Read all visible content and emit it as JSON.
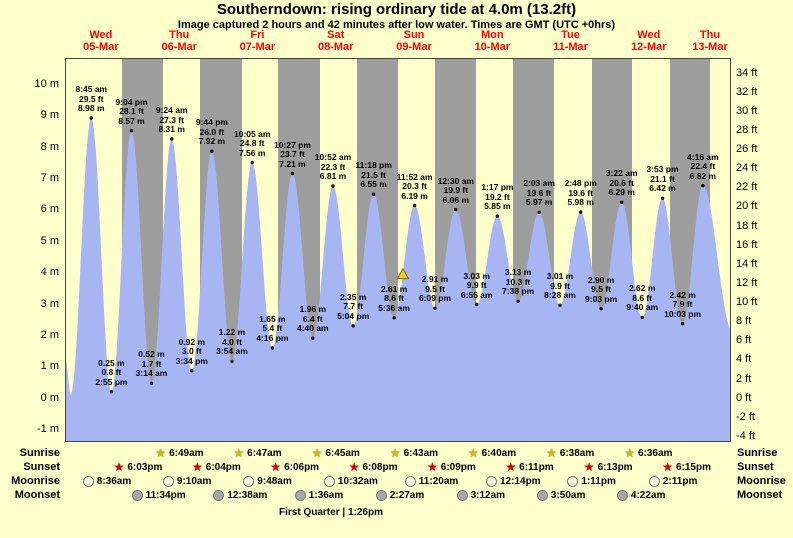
{
  "title": "Southerndown: rising ordinary tide at 4.0m (13.2ft)",
  "subtitle": "Image captured 2 hours and 42 minutes after low water. Times are GMT (UTC +0hrs)",
  "footer": "First Quarter | 1:26pm",
  "colors": {
    "background": "#ffffcc",
    "night_band": "#9e9e9e",
    "tide_fill": "#a7b6f2",
    "day_label": "#ff0000",
    "marker_fill": "#f2cf1a",
    "marker_stroke": "#7a6800",
    "sunrise_star": "#d8b60a",
    "sunset_star": "#e00000",
    "moonrise_circle": "#ffffe8",
    "moonset_circle": "#a8a8a8",
    "extreme_dot": "#111111"
  },
  "days": [
    {
      "name": "Wed",
      "date": "05-Mar"
    },
    {
      "name": "Thu",
      "date": "06-Mar"
    },
    {
      "name": "Fri",
      "date": "07-Mar"
    },
    {
      "name": "Sat",
      "date": "08-Mar"
    },
    {
      "name": "Sun",
      "date": "09-Mar"
    },
    {
      "name": "Mon",
      "date": "10-Mar"
    },
    {
      "name": "Tue",
      "date": "11-Mar"
    },
    {
      "name": "Wed",
      "date": "12-Mar"
    },
    {
      "name": "Thu",
      "date": "13-Mar"
    }
  ],
  "axes": {
    "left_unit": "m",
    "right_unit": "ft",
    "left_m": [
      10,
      9,
      8,
      7,
      6,
      5,
      4,
      3,
      2,
      1,
      0,
      -1
    ],
    "right_ft": [
      34,
      32,
      30,
      28,
      26,
      24,
      22,
      20,
      18,
      16,
      14,
      12,
      10,
      8,
      6,
      4,
      2,
      0,
      -2,
      -4
    ]
  },
  "chart_data": {
    "type": "area",
    "title": "Southerndown: rising ordinary tide at 4.0m (13.2ft)",
    "x_is_time": true,
    "t_start": 1.0,
    "t_end": 205.2,
    "ylim_m": [
      -1.4,
      10.85
    ],
    "grid": false,
    "night_bands": [
      [
        18.05,
        30.82
      ],
      [
        42.07,
        54.78
      ],
      [
        66.1,
        78.75
      ],
      [
        90.13,
        102.72
      ],
      [
        114.15,
        126.67
      ],
      [
        138.18,
        150.63
      ],
      [
        162.22,
        174.6
      ],
      [
        186.25,
        198.55
      ]
    ],
    "marker": {
      "t": 104.3,
      "m": 4.0,
      "note": "current tide 4.0m rising"
    },
    "curve_edge_before": [
      {
        "t": 1.0,
        "m": 1.2
      },
      {
        "t": 2.4,
        "m": 0.15
      }
    ],
    "curve_edge_after": [
      {
        "t": 205.3,
        "m": 2.2
      }
    ],
    "extremes": [
      {
        "kind": "high",
        "t": 8.75,
        "m": 8.98,
        "lines": [
          "8:45 am",
          "29.5 ft",
          "8.98 m"
        ]
      },
      {
        "kind": "low",
        "t": 14.92,
        "m": 0.25,
        "lines": [
          "0.25 m",
          "0.8 ft",
          "2:55 pm"
        ]
      },
      {
        "kind": "high",
        "t": 21.07,
        "m": 8.57,
        "lines": [
          "9:04 pm",
          "28.1 ft",
          "8.57 m"
        ]
      },
      {
        "kind": "low",
        "t": 27.23,
        "m": 0.52,
        "lines": [
          "0.52 m",
          "1.7 ft",
          "3:14 am"
        ]
      },
      {
        "kind": "high",
        "t": 33.4,
        "m": 8.31,
        "lines": [
          "9:24 am",
          "27.3 ft",
          "8.31 m"
        ]
      },
      {
        "kind": "low",
        "t": 39.57,
        "m": 0.92,
        "lines": [
          "0.92 m",
          "3.0 ft",
          "3:34 pm"
        ]
      },
      {
        "kind": "high",
        "t": 45.73,
        "m": 7.92,
        "lines": [
          "9:44 pm",
          "26.0 ft",
          "7.92 m"
        ]
      },
      {
        "kind": "low",
        "t": 51.9,
        "m": 1.22,
        "lines": [
          "1.22 m",
          "4.0 ft",
          "3:54 am"
        ]
      },
      {
        "kind": "high",
        "t": 58.08,
        "m": 7.56,
        "lines": [
          "10:05 am",
          "24.8 ft",
          "7.56 m"
        ]
      },
      {
        "kind": "low",
        "t": 64.27,
        "m": 1.65,
        "lines": [
          "1.65 m",
          "5.4 ft",
          "4:16 pm"
        ]
      },
      {
        "kind": "high",
        "t": 70.45,
        "m": 7.21,
        "lines": [
          "10:27 pm",
          "23.7 ft",
          "7.21 m"
        ]
      },
      {
        "kind": "low",
        "t": 76.67,
        "m": 1.96,
        "lines": [
          "1.96 m",
          "6.4 ft",
          "4:40 am"
        ]
      },
      {
        "kind": "high",
        "t": 82.87,
        "m": 6.81,
        "lines": [
          "10:52 am",
          "22.3 ft",
          "6.81 m"
        ]
      },
      {
        "kind": "low",
        "t": 89.07,
        "m": 2.35,
        "lines": [
          "2.35 m",
          "7.7 ft",
          "5:04 pm"
        ]
      },
      {
        "kind": "high",
        "t": 95.3,
        "m": 6.55,
        "lines": [
          "11:18 pm",
          "21.5 ft",
          "6.55 m"
        ]
      },
      {
        "kind": "low",
        "t": 101.6,
        "m": 2.61,
        "lines": [
          "2.61 m",
          "8.6 ft",
          "5:36 am"
        ]
      },
      {
        "kind": "high",
        "t": 107.87,
        "m": 6.19,
        "lines": [
          "11:52 am",
          "20.3 ft",
          "6.19 m"
        ]
      },
      {
        "kind": "low",
        "t": 114.15,
        "m": 2.91,
        "lines": [
          "2.91 m",
          "9.5 ft",
          "6:09 pm"
        ]
      },
      {
        "kind": "high",
        "t": 120.5,
        "m": 6.06,
        "lines": [
          "12:30 am",
          "19.9 ft",
          "6.06 m"
        ]
      },
      {
        "kind": "low",
        "t": 126.92,
        "m": 3.03,
        "lines": [
          "3.03 m",
          "9.9 ft",
          "6:55 am"
        ]
      },
      {
        "kind": "high",
        "t": 133.28,
        "m": 5.85,
        "lines": [
          "1:17 pm",
          "19.2 ft",
          "5.85 m"
        ]
      },
      {
        "kind": "low",
        "t": 139.63,
        "m": 3.13,
        "lines": [
          "3.13 m",
          "10.3 ft",
          "7:38 pm"
        ]
      },
      {
        "kind": "high",
        "t": 146.05,
        "m": 5.97,
        "lines": [
          "2:03 am",
          "19.6 ft",
          "5.97 m"
        ]
      },
      {
        "kind": "low",
        "t": 152.47,
        "m": 3.01,
        "lines": [
          "3.01 m",
          "9.9 ft",
          "8:28 am"
        ]
      },
      {
        "kind": "high",
        "t": 158.8,
        "m": 5.98,
        "lines": [
          "2:48 pm",
          "19.6 ft",
          "5.98 m"
        ]
      },
      {
        "kind": "low",
        "t": 165.05,
        "m": 2.9,
        "lines": [
          "2.90 m",
          "9.5 ft",
          "9:03 pm"
        ]
      },
      {
        "kind": "high",
        "t": 171.37,
        "m": 6.29,
        "lines": [
          "3:22 am",
          "20.6 ft",
          "6.29 m"
        ]
      },
      {
        "kind": "low",
        "t": 177.67,
        "m": 2.62,
        "lines": [
          "2.62 m",
          "8.6 ft",
          "9:40 am"
        ]
      },
      {
        "kind": "high",
        "t": 183.88,
        "m": 6.42,
        "lines": [
          "3:53 pm",
          "21.1 ft",
          "6.42 m"
        ]
      },
      {
        "kind": "low",
        "t": 190.05,
        "m": 2.42,
        "lines": [
          "2.42 m",
          "7.9 ft",
          "10:03 pm"
        ]
      },
      {
        "kind": "high",
        "t": 196.27,
        "m": 6.82,
        "lines": [
          "4:16 am",
          "22.4 ft",
          "6.82 m"
        ]
      }
    ]
  },
  "events": {
    "rows": [
      {
        "id": "sunrise",
        "label": "Sunrise",
        "icon": "star-gold",
        "items": [
          {
            "time": "6:49am",
            "t": 30.82
          },
          {
            "time": "6:47am",
            "t": 54.78
          },
          {
            "time": "6:45am",
            "t": 78.75
          },
          {
            "time": "6:43am",
            "t": 102.72
          },
          {
            "time": "6:40am",
            "t": 126.67
          },
          {
            "time": "6:38am",
            "t": 150.63
          },
          {
            "time": "6:36am",
            "t": 174.6
          }
        ]
      },
      {
        "id": "sunset",
        "label": "Sunset",
        "icon": "star-red",
        "items": [
          {
            "time": "6:03pm",
            "t": 18.05
          },
          {
            "time": "6:04pm",
            "t": 42.07
          },
          {
            "time": "6:06pm",
            "t": 66.1
          },
          {
            "time": "6:08pm",
            "t": 90.13
          },
          {
            "time": "6:09pm",
            "t": 114.15
          },
          {
            "time": "6:11pm",
            "t": 138.18
          },
          {
            "time": "6:13pm",
            "t": 162.22
          },
          {
            "time": "6:15pm",
            "t": 186.25
          }
        ]
      },
      {
        "id": "moonrise",
        "label": "Moonrise",
        "icon": "circle-light",
        "items": [
          {
            "time": "8:36am",
            "t": 8.6
          },
          {
            "time": "9:10am",
            "t": 33.17
          },
          {
            "time": "9:48am",
            "t": 57.8
          },
          {
            "time": "10:32am",
            "t": 82.53
          },
          {
            "time": "11:20am",
            "t": 107.33
          },
          {
            "time": "12:14pm",
            "t": 132.23
          },
          {
            "time": "1:11pm",
            "t": 157.18
          },
          {
            "time": "2:11pm",
            "t": 182.18
          }
        ]
      },
      {
        "id": "moonset",
        "label": "Moonset",
        "icon": "circle-dark",
        "items": [
          {
            "time": "11:34pm",
            "t": 23.57
          },
          {
            "time": "12:38am",
            "t": 48.63
          },
          {
            "time": "1:36am",
            "t": 73.6
          },
          {
            "time": "2:27am",
            "t": 98.45
          },
          {
            "time": "3:12am",
            "t": 123.2
          },
          {
            "time": "3:50am",
            "t": 147.83
          },
          {
            "time": "4:22am",
            "t": 172.37
          }
        ]
      }
    ]
  }
}
